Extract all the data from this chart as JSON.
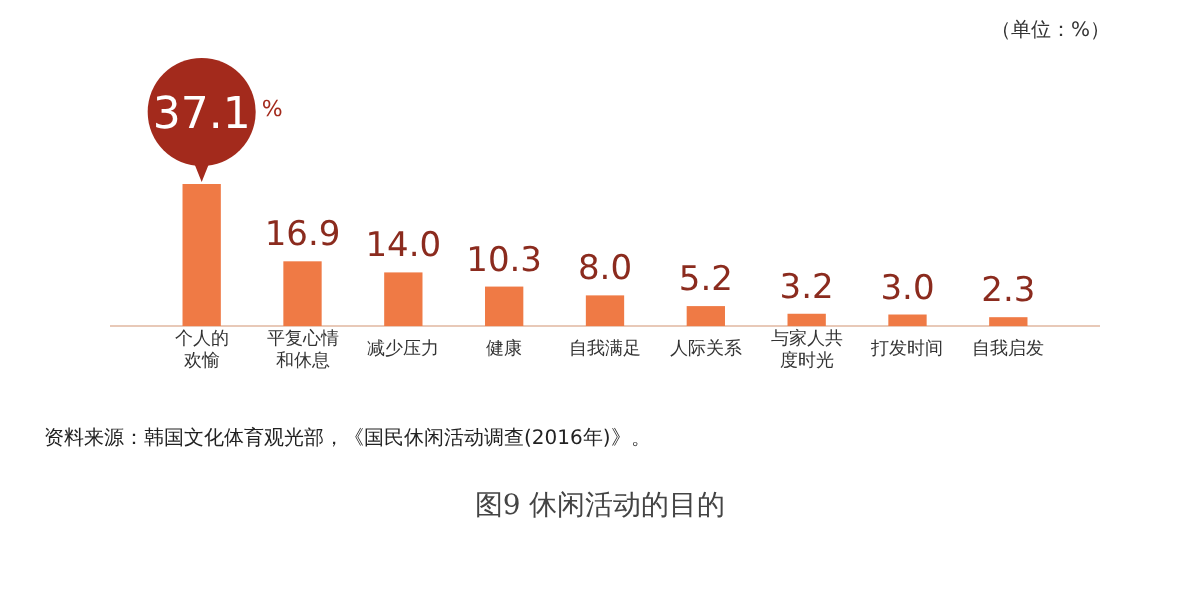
{
  "chart_data": {
    "type": "bar",
    "title": "图9 休闲活动的目的",
    "subtitle": "（单位：%）",
    "categories": [
      "个人的欢愉",
      "平复心情和休息",
      "减少压力",
      "健康",
      "自我满足",
      "人际关系",
      "与家人共度时光",
      "打发时间",
      "自我启发"
    ],
    "values": [
      37.1,
      16.9,
      14.0,
      10.3,
      8.0,
      5.2,
      3.2,
      3.0,
      2.3
    ],
    "value_labels": [
      "37.1",
      "16.9",
      "14.0",
      "10.3",
      "8.0",
      "5.2",
      "3.2",
      "3.0",
      "2.3"
    ],
    "colors": [
      "#ef7a45",
      "#ef7a45",
      "#ef7a45",
      "#ef7a45",
      "#ef7a45",
      "#ef7a45",
      "#ef7a45",
      "#ef7a45",
      "#ef7a45"
    ],
    "annotations": [
      "%",
      "资料来源：韩国文化体育观光部，《国民休闲活动调查(2016年)》。"
    ]
  }
}
